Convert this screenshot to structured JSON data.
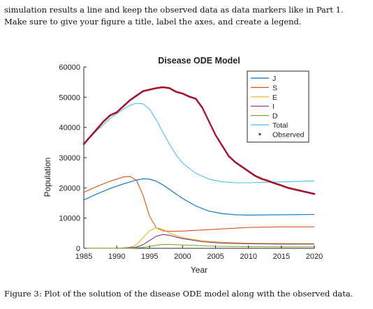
{
  "document": {
    "intro_line1": "simulation results a line and keep the observed data as data markers like in Part 1.",
    "intro_line2": "Make sure to give your figure a title, label the axes, and create a legend.",
    "caption": "Figure 3:  Plot of the solution of the disease ODE model along with the observed data."
  },
  "chart_data": {
    "type": "line",
    "title": "Disease ODE Model",
    "xlabel": "Year",
    "ylabel": "Population",
    "xlim": [
      1985,
      2020
    ],
    "ylim": [
      0,
      60000
    ],
    "xticks": [
      1985,
      1990,
      1995,
      2000,
      2005,
      2010,
      2015,
      2020
    ],
    "yticks": [
      0,
      10000,
      20000,
      30000,
      40000,
      50000,
      60000
    ],
    "legend_position": "top-right",
    "series": [
      {
        "name": "J",
        "color": "#0072BD",
        "x": [
          1985,
          1987,
          1989,
          1991,
          1993,
          1994,
          1995,
          1996,
          1997,
          1998,
          2000,
          2002,
          2004,
          2006,
          2008,
          2010,
          2015,
          2020
        ],
        "y": [
          16000,
          18000,
          19800,
          21300,
          22600,
          23000,
          22900,
          22200,
          21000,
          19500,
          16500,
          14000,
          12300,
          11500,
          11100,
          11000,
          11100,
          11200
        ]
      },
      {
        "name": "S",
        "color": "#D95319",
        "x": [
          1985,
          1987,
          1989,
          1991,
          1992,
          1993,
          1994,
          1995,
          1996,
          1997,
          1998,
          2000,
          2005,
          2010,
          2015,
          2020
        ],
        "y": [
          18500,
          20500,
          22200,
          23600,
          23800,
          22500,
          17500,
          10500,
          6800,
          5800,
          5600,
          5700,
          6300,
          6900,
          7100,
          7100
        ]
      },
      {
        "name": "E",
        "color": "#EDB120",
        "x": [
          1985,
          1990,
          1992,
          1993,
          1994,
          1995,
          1996,
          1997,
          1998,
          2000,
          2003,
          2006,
          2010,
          2015,
          2020
        ],
        "y": [
          0,
          30,
          300,
          1200,
          3500,
          5800,
          6800,
          6300,
          5000,
          3500,
          2500,
          2000,
          1700,
          1600,
          1550
        ]
      },
      {
        "name": "I",
        "color": "#7E2F8E",
        "x": [
          1985,
          1991,
          1993,
          1994,
          1995,
          1996,
          1997,
          1998,
          2000,
          2003,
          2006,
          2010,
          2015,
          2020
        ],
        "y": [
          0,
          50,
          400,
          1200,
          2600,
          4000,
          4600,
          4300,
          3200,
          2200,
          1700,
          1500,
          1400,
          1400
        ]
      },
      {
        "name": "D",
        "color": "#77AC30",
        "x": [
          1985,
          1992,
          1994,
          1996,
          1997,
          1998,
          2000,
          2005,
          2010,
          2015,
          2020
        ],
        "y": [
          0,
          20,
          300,
          1000,
          1300,
          1300,
          1100,
          700,
          550,
          500,
          500
        ]
      },
      {
        "name": "Total",
        "color": "#4DBEEE",
        "x": [
          1985,
          1987,
          1989,
          1991,
          1992,
          1993,
          1994,
          1995,
          1996,
          1997,
          1998,
          1999,
          2000,
          2002,
          2004,
          2006,
          2008,
          2010,
          2015,
          2020
        ],
        "y": [
          34500,
          39000,
          43000,
          46000,
          47300,
          48000,
          47800,
          46000,
          42500,
          38500,
          34500,
          31000,
          28200,
          24800,
          22900,
          22000,
          21700,
          21700,
          22000,
          22300
        ]
      },
      {
        "name": "Observed",
        "color": "#A2142F",
        "marker": "dot",
        "x": [
          1985,
          1986,
          1987,
          1988,
          1989,
          1990,
          1991,
          1992,
          1993,
          1994,
          1995,
          1996,
          1997,
          1998,
          1999,
          2000,
          2001,
          2002,
          2003,
          2004,
          2005,
          2006,
          2007,
          2008,
          2009,
          2010,
          2011,
          2012,
          2013,
          2014,
          2015,
          2016,
          2017,
          2018,
          2019,
          2020
        ],
        "y": [
          34500,
          37000,
          39500,
          42000,
          44000,
          45000,
          47000,
          49000,
          50500,
          52000,
          52500,
          53000,
          53300,
          53000,
          51800,
          51200,
          50200,
          49500,
          46500,
          42000,
          37500,
          34000,
          30500,
          28500,
          27000,
          25500,
          24000,
          23000,
          22300,
          21500,
          20800,
          20000,
          19500,
          19000,
          18500,
          18000
        ]
      }
    ]
  }
}
